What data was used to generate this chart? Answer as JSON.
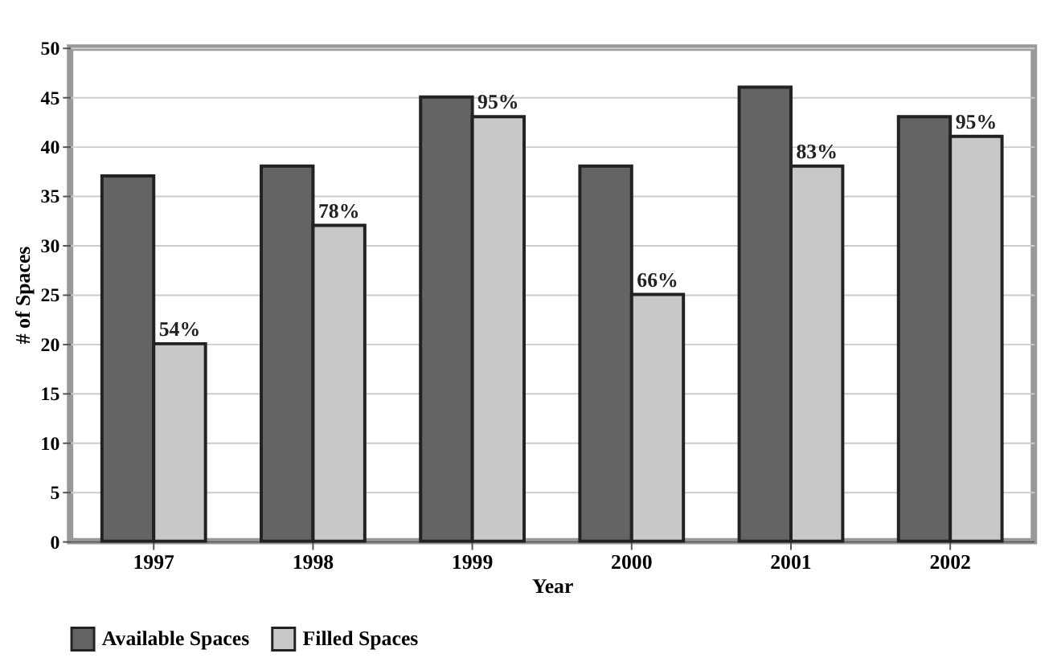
{
  "chart_data": {
    "type": "bar",
    "xlabel": "Year",
    "ylabel": "# of Spaces",
    "categories": [
      "1997",
      "1998",
      "1999",
      "2000",
      "2001",
      "2002"
    ],
    "series": [
      {
        "name": "Available Spaces",
        "color": "#646464",
        "values": [
          37,
          38,
          45,
          38,
          46,
          43
        ]
      },
      {
        "name": "Filled Spaces",
        "color": "#c8c8c8",
        "values": [
          20,
          32,
          43,
          25,
          38,
          41
        ]
      }
    ],
    "annotations": [
      {
        "text": "54%",
        "x": "1997",
        "y": 20
      },
      {
        "text": "78%",
        "x": "1998",
        "y": 32
      },
      {
        "text": "95%",
        "x": "1999",
        "y": 43
      },
      {
        "text": "66%",
        "x": "2000",
        "y": 25
      },
      {
        "text": "83%",
        "x": "2001",
        "y": 38
      },
      {
        "text": "95%",
        "x": "2002",
        "y": 41
      }
    ],
    "ylim": [
      0,
      50
    ],
    "yticks": [
      0,
      5,
      10,
      15,
      20,
      25,
      30,
      35,
      40,
      45,
      50
    ],
    "grid": "y",
    "legend": "bottom"
  }
}
